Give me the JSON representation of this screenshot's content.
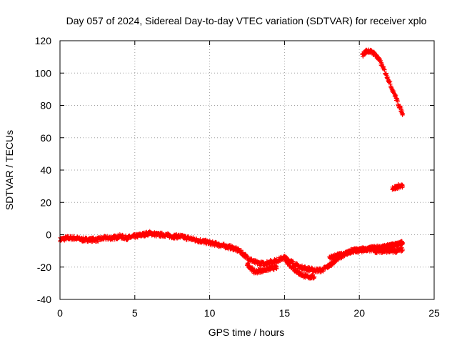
{
  "chart_data": {
    "type": "scatter",
    "title": "Day 057 of 2024, Sidereal Day-to-day VTEC variation (SDTVAR) for receiver xplo",
    "xlabel": "GPS time / hours",
    "ylabel": "SDTVAR / TECUs",
    "xlim": [
      0,
      25
    ],
    "ylim": [
      -40,
      120
    ],
    "xticks": [
      0,
      5,
      10,
      15,
      20,
      25
    ],
    "yticks": [
      -40,
      -20,
      0,
      20,
      40,
      60,
      80,
      100,
      120
    ],
    "grid": true,
    "marker": "+",
    "color": "#ff0000",
    "series": [
      {
        "name": "main-track",
        "x": [
          0.0,
          0.5,
          1.0,
          1.5,
          2.0,
          2.5,
          3.0,
          3.5,
          4.0,
          4.5,
          5.0,
          5.5,
          6.0,
          6.5,
          7.0,
          7.5,
          8.0,
          8.5,
          9.0,
          9.5,
          10.0,
          10.5,
          11.0,
          11.5,
          12.0,
          12.5,
          13.0,
          13.5,
          14.0,
          14.5,
          15.0,
          15.5,
          16.0,
          16.5,
          17.0,
          17.5,
          18.0,
          18.5,
          19.0,
          19.5,
          20.0,
          20.5,
          21.0,
          21.5,
          22.0,
          22.5,
          22.9
        ],
        "y": [
          -3,
          -2,
          -2,
          -3,
          -3,
          -3,
          -2,
          -2,
          -1,
          -2,
          -1,
          0,
          1,
          0,
          0,
          -1,
          -1,
          -2,
          -3,
          -4,
          -5,
          -6,
          -7,
          -8,
          -10,
          -14,
          -17,
          -18,
          -17,
          -16,
          -14,
          -17,
          -20,
          -21,
          -22,
          -22,
          -19,
          -15,
          -12,
          -10,
          -10,
          -9,
          -9,
          -8,
          -7,
          -6,
          -5
        ]
      },
      {
        "name": "lower-branch-a",
        "x": [
          12.5,
          13.0,
          13.5,
          14.0,
          14.5
        ],
        "y": [
          -18,
          -23,
          -22,
          -21,
          -20
        ]
      },
      {
        "name": "lower-branch-b",
        "x": [
          15.0,
          15.5,
          16.0,
          16.5,
          17.0
        ],
        "y": [
          -15,
          -20,
          -24,
          -26,
          -26
        ]
      },
      {
        "name": "upper-branch",
        "x": [
          18.0,
          18.5,
          19.0,
          19.5,
          20.0,
          20.5,
          21.0,
          21.5,
          22.0,
          22.5,
          22.9
        ],
        "y": [
          -14,
          -13,
          -12,
          -10,
          -9,
          -9,
          -8,
          -8,
          -7,
          -6,
          -5
        ]
      },
      {
        "name": "late-low",
        "x": [
          21.0,
          21.5,
          22.0,
          22.5,
          22.9
        ],
        "y": [
          -10,
          -10,
          -10,
          -10,
          -9
        ]
      },
      {
        "name": "descending-arc",
        "x": [
          20.2,
          20.4,
          20.6,
          20.8,
          21.0,
          21.2,
          21.4,
          21.6,
          21.8,
          22.0,
          22.2,
          22.4,
          22.6,
          22.8,
          22.9
        ],
        "y": [
          111,
          113,
          114,
          113,
          112,
          110,
          107,
          103,
          99,
          95,
          90,
          86,
          81,
          77,
          75
        ]
      },
      {
        "name": "cluster-30",
        "x": [
          22.2,
          22.4,
          22.6,
          22.8,
          22.9
        ],
        "y": [
          29,
          29,
          30,
          30,
          30
        ]
      }
    ]
  }
}
